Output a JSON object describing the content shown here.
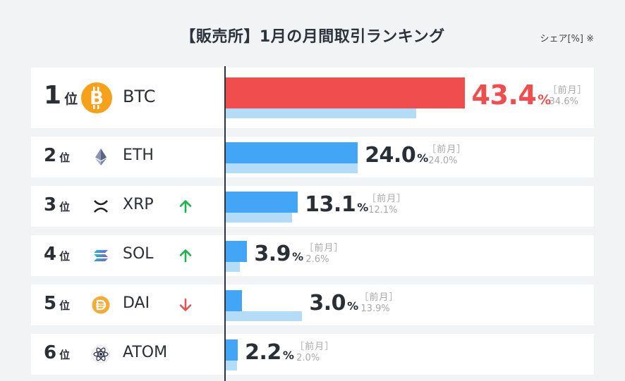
{
  "title": "【販売所】1月の月間取引ランキング",
  "unit_label": "シェア[%] ※",
  "rank_suffix": "位",
  "prev_label": "［前月］",
  "percent_sign": "%",
  "colors": {
    "highlight": "#f04e4e",
    "current": "#42a5f5",
    "previous": "#b3dcf8",
    "up": "#19b54a",
    "down": "#e05555"
  },
  "chart_data": {
    "type": "bar",
    "title": "【販売所】1月の月間取引ランキング",
    "ylabel": "シェア[%]",
    "categories": [
      "BTC",
      "ETH",
      "XRP",
      "SOL",
      "DAI",
      "ATOM"
    ],
    "series": [
      {
        "name": "1月",
        "values": [
          43.4,
          24.0,
          13.1,
          3.9,
          3.0,
          2.2
        ]
      },
      {
        "name": "前月",
        "values": [
          34.6,
          24.0,
          12.1,
          2.6,
          13.9,
          2.0
        ]
      }
    ],
    "xlim": [
      0,
      50
    ]
  },
  "rows": [
    {
      "rank": "1",
      "symbol": "BTC",
      "icon": "bitcoin-icon",
      "trend": "none",
      "value": "43.4",
      "prev": "34.6%",
      "highlight": true
    },
    {
      "rank": "2",
      "symbol": "ETH",
      "icon": "ethereum-icon",
      "trend": "none",
      "value": "24.0",
      "prev": "24.0%",
      "highlight": false
    },
    {
      "rank": "3",
      "symbol": "XRP",
      "icon": "xrp-icon",
      "trend": "up",
      "value": "13.1",
      "prev": "12.1%",
      "highlight": false
    },
    {
      "rank": "4",
      "symbol": "SOL",
      "icon": "solana-icon",
      "trend": "up",
      "value": "3.9",
      "prev": "2.6%",
      "highlight": false
    },
    {
      "rank": "5",
      "symbol": "DAI",
      "icon": "dai-icon",
      "trend": "down",
      "value": "3.0",
      "prev": "13.9%",
      "highlight": false
    },
    {
      "rank": "6",
      "symbol": "ATOM",
      "icon": "cosmos-icon",
      "trend": "none",
      "value": "2.2",
      "prev": "2.0%",
      "highlight": false
    }
  ]
}
